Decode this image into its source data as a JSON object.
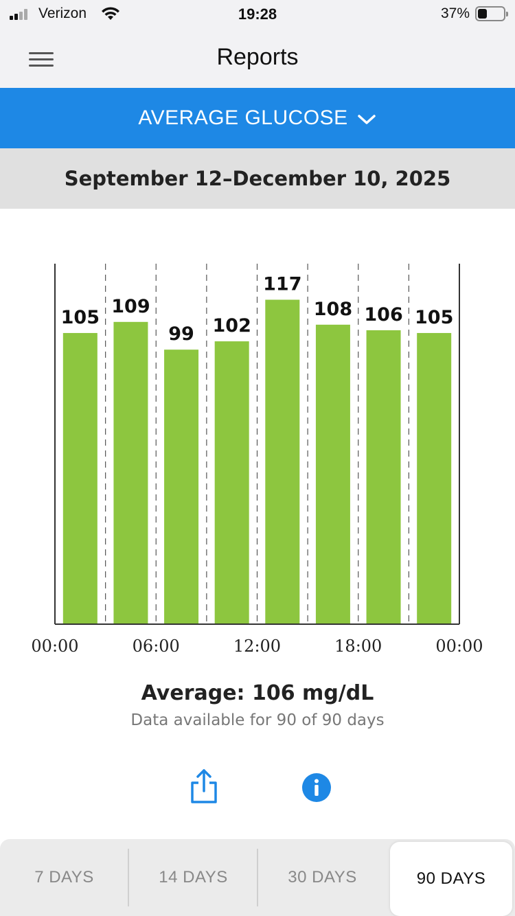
{
  "status_bar": {
    "carrier": "Verizon",
    "time": "19:28",
    "battery_percent": "37%",
    "battery_level": 0.37
  },
  "header": {
    "title": "Reports"
  },
  "report_selector": {
    "label": "AVERAGE GLUCOSE"
  },
  "date_range": "September 12–December 10, 2025",
  "chart_data": {
    "type": "bar",
    "categories": [
      "00:00–03:00",
      "03:00–06:00",
      "06:00–09:00",
      "09:00–12:00",
      "12:00–15:00",
      "15:00–18:00",
      "18:00–21:00",
      "21:00–24:00"
    ],
    "values": [
      105,
      109,
      99,
      102,
      117,
      108,
      106,
      105
    ],
    "value_labels": [
      "105",
      "109",
      "99",
      "102",
      "117",
      "108",
      "106",
      "105"
    ],
    "x_ticks": [
      "00:00",
      "06:00",
      "12:00",
      "18:00",
      "00:00"
    ],
    "ylim": [
      0,
      130
    ],
    "bar_color": "#8dc63f",
    "grid": "vertical-dashed",
    "title": "",
    "xlabel": "",
    "ylabel": ""
  },
  "summary": {
    "average": "Average: 106 mg/dL",
    "availability": "Data available for 90 of 90 days"
  },
  "actions": {
    "share_icon": "share-icon",
    "info_icon": "info-icon",
    "accent": "#1e88e5"
  },
  "period_tabs": [
    {
      "label": "7 DAYS",
      "active": false
    },
    {
      "label": "14 DAYS",
      "active": false
    },
    {
      "label": "30 DAYS",
      "active": false
    },
    {
      "label": "90 DAYS",
      "active": true
    }
  ]
}
